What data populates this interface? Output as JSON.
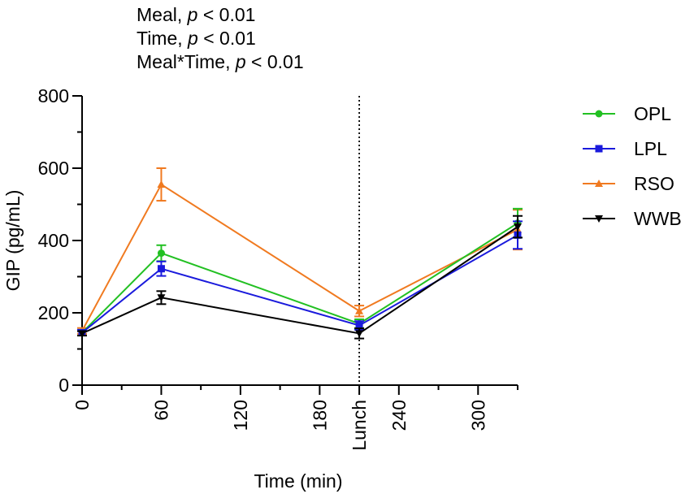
{
  "chart_data": {
    "type": "line",
    "x": [
      0,
      60,
      210,
      330
    ],
    "series": [
      {
        "name": "OPL",
        "color": "#22c022",
        "marker": "circle",
        "values": [
          145,
          365,
          170,
          448
        ],
        "errors": [
          8,
          22,
          12,
          40
        ]
      },
      {
        "name": "LPL",
        "color": "#1a1adc",
        "marker": "square",
        "values": [
          145,
          322,
          165,
          415
        ],
        "errors": [
          8,
          20,
          12,
          38
        ]
      },
      {
        "name": "RSO",
        "color": "#f07a20",
        "marker": "triangle-up",
        "values": [
          150,
          555,
          205,
          430
        ],
        "errors": [
          8,
          45,
          15,
          55
        ]
      },
      {
        "name": "WWB",
        "color": "#000000",
        "marker": "triangle-down",
        "values": [
          143,
          242,
          143,
          438
        ],
        "errors": [
          6,
          18,
          14,
          30
        ]
      }
    ],
    "xlabel": "Time (min)",
    "ylabel": "GIP (pg/mL)",
    "xlim": [
      0,
      330
    ],
    "ylim": [
      0,
      800
    ],
    "xticks": [
      {
        "value": 0,
        "label": "0"
      },
      {
        "value": 60,
        "label": "60"
      },
      {
        "value": 120,
        "label": "120"
      },
      {
        "value": 180,
        "label": "180"
      },
      {
        "value": 210,
        "label": "Lunch"
      },
      {
        "value": 240,
        "label": "240"
      },
      {
        "value": 300,
        "label": "300"
      }
    ],
    "xminor": [
      30,
      90,
      150,
      270,
      330
    ],
    "yticks": [
      0,
      200,
      400,
      600,
      800
    ],
    "yminor": [
      100,
      300,
      500,
      700
    ],
    "reference_line": {
      "x": 210,
      "style": "dotted"
    },
    "legend_position": "right",
    "stats": [
      {
        "term": "Meal",
        "p": "p",
        "rest": " < 0.01"
      },
      {
        "term": "Time",
        "p": "p",
        "rest": " < 0.01"
      },
      {
        "term": "Meal*Time",
        "p": "p",
        "rest": " < 0.01"
      }
    ]
  }
}
